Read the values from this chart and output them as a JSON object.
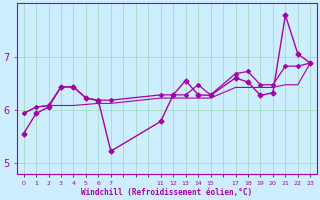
{
  "background_color": "#cceeff",
  "grid_color": "#aaddcc",
  "line_color": "#aa00aa",
  "xlabel": "Windchill (Refroidissement éolien,°C)",
  "xlabel_color": "#aa00aa",
  "ylabel_ticks": [
    5,
    6,
    7
  ],
  "xtick_labels": [
    "0",
    "1",
    "2",
    "3",
    "4",
    "5",
    "6",
    "7",
    "",
    "",
    "",
    "11",
    "12",
    "13",
    "14",
    "15",
    "",
    "17",
    "18",
    "19",
    "20",
    "21",
    "22",
    "23"
  ],
  "xtick_positions": [
    0,
    1,
    2,
    3,
    4,
    5,
    6,
    7,
    8,
    9,
    10,
    11,
    12,
    13,
    14,
    15,
    16,
    17,
    18,
    19,
    20,
    21,
    22,
    23
  ],
  "series1": {
    "x": [
      0,
      1,
      2,
      3,
      4,
      5,
      6,
      7,
      11,
      12,
      13,
      14,
      15,
      17,
      18,
      19,
      20,
      21,
      22,
      23
    ],
    "y": [
      5.55,
      5.93,
      6.05,
      6.43,
      6.43,
      6.22,
      6.17,
      5.22,
      5.78,
      6.28,
      6.55,
      6.28,
      6.27,
      6.6,
      6.52,
      6.27,
      6.32,
      7.78,
      7.05,
      6.88
    ]
  },
  "series2": {
    "x": [
      0,
      1,
      2,
      3,
      4,
      5,
      6,
      7,
      11,
      12,
      13,
      14,
      15,
      17,
      18,
      19,
      20,
      21,
      22,
      23
    ],
    "y": [
      5.93,
      6.05,
      6.08,
      6.43,
      6.43,
      6.22,
      6.18,
      6.18,
      6.28,
      6.28,
      6.28,
      6.47,
      6.28,
      6.68,
      6.72,
      6.47,
      6.47,
      6.82,
      6.82,
      6.88
    ]
  },
  "series3": {
    "x": [
      0,
      1,
      2,
      3,
      4,
      5,
      6,
      7,
      11,
      12,
      13,
      14,
      15,
      17,
      18,
      19,
      20,
      21,
      22,
      23
    ],
    "y": [
      5.93,
      6.05,
      6.08,
      6.08,
      6.08,
      6.1,
      6.12,
      6.12,
      6.22,
      6.22,
      6.22,
      6.22,
      6.22,
      6.42,
      6.42,
      6.42,
      6.42,
      6.47,
      6.47,
      6.88
    ]
  },
  "ylim": [
    4.8,
    8.0
  ],
  "xlim": [
    -0.5,
    23.5
  ]
}
